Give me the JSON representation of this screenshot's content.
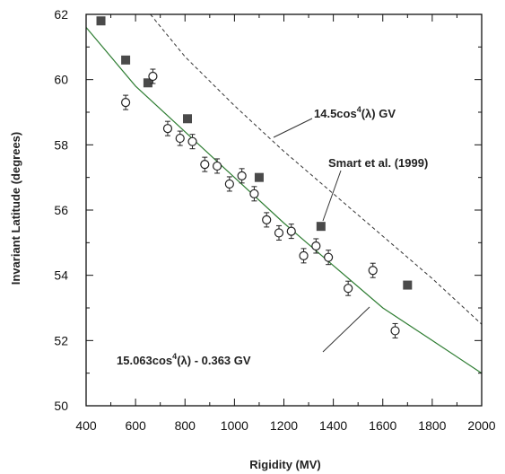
{
  "chart_data": {
    "type": "scatter",
    "xlabel": "Rigidity (MV)",
    "ylabel": "Invariant Latitude (degrees)",
    "xlim": [
      400,
      2000
    ],
    "ylim": [
      50,
      62
    ],
    "xticks": [
      "400",
      "600",
      "800",
      "1000",
      "1200",
      "1400",
      "1600",
      "1800",
      "2000"
    ],
    "yticks": [
      "50",
      "52",
      "54",
      "56",
      "58",
      "60",
      "62"
    ],
    "grid": false,
    "series": [
      {
        "name": "Smart et al. (1999)",
        "marker": "filled-square",
        "color": "#4a4a4a",
        "points": [
          [
            460,
            61.8
          ],
          [
            560,
            60.6
          ],
          [
            650,
            59.9
          ],
          [
            810,
            58.8
          ],
          [
            1100,
            57.0
          ],
          [
            1350,
            55.5
          ],
          [
            1700,
            53.7
          ]
        ]
      },
      {
        "marker": "open-circle-errorbar",
        "color": "#222222",
        "points": [
          [
            560,
            59.3
          ],
          [
            670,
            60.1
          ],
          [
            730,
            58.5
          ],
          [
            780,
            58.2
          ],
          [
            830,
            58.1
          ],
          [
            880,
            57.4
          ],
          [
            930,
            57.35
          ],
          [
            980,
            56.8
          ],
          [
            1030,
            57.05
          ],
          [
            1080,
            56.5
          ],
          [
            1130,
            55.7
          ],
          [
            1180,
            55.3
          ],
          [
            1230,
            55.35
          ],
          [
            1280,
            54.6
          ],
          [
            1330,
            54.9
          ],
          [
            1380,
            54.55
          ],
          [
            1460,
            53.6
          ],
          [
            1560,
            54.15
          ],
          [
            1650,
            52.3
          ]
        ]
      }
    ],
    "curves": [
      {
        "label": "14.5cos4(λ) GV",
        "style": "dashed",
        "color": "#333333",
        "points": [
          [
            660,
            62
          ],
          [
            800,
            60.7
          ],
          [
            1000,
            59.2
          ],
          [
            1200,
            57.8
          ],
          [
            1400,
            56.5
          ],
          [
            1600,
            55.2
          ],
          [
            1800,
            53.9
          ],
          [
            2000,
            52.5
          ]
        ]
      },
      {
        "label": "15.063cos4(λ) - 0.363 GV",
        "style": "solid",
        "color": "#2e7d32",
        "points": [
          [
            400,
            61.6
          ],
          [
            600,
            59.8
          ],
          [
            800,
            58.4
          ],
          [
            1000,
            57.0
          ],
          [
            1200,
            55.6
          ],
          [
            1400,
            54.3
          ],
          [
            1600,
            53.0
          ],
          [
            1800,
            52.0
          ],
          [
            2000,
            51.0
          ]
        ]
      }
    ],
    "annotations": {
      "dashed_curve": {
        "prefix": "14.5cos",
        "exponent": "4",
        "suffix": "(λ) GV"
      },
      "smart_label": "Smart et al. (1999)",
      "solid_curve": {
        "prefix": "15.063cos",
        "exponent": "4",
        "suffix": "(λ) - 0.363 GV"
      }
    }
  }
}
